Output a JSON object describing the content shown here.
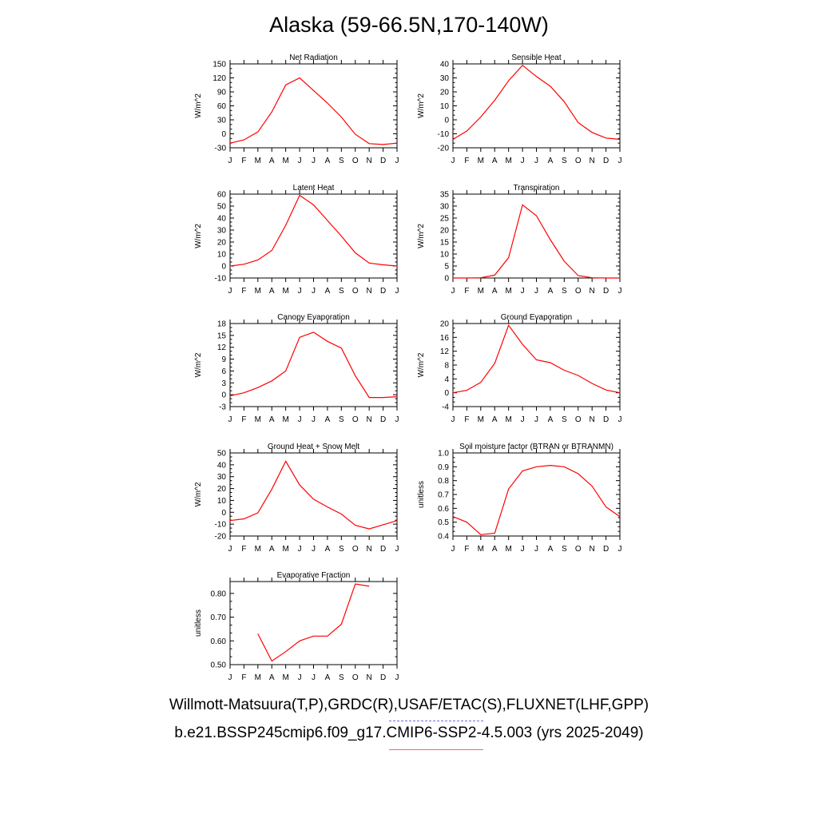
{
  "title": "Alaska (59-66.5N,170-140W)",
  "footer": {
    "line1": "Willmott-Matsuura(T,P),GRDC(R),USAF/ETAC(S),FLUXNET(LHF,GPP)",
    "line2": "b.e21.BSSP245cmip6.f09_g17.CMIP6-SSP2-4.5.003 (yrs 2025-2049)"
  },
  "colors": {
    "model": "#ff0000",
    "observations": "#5555ee"
  },
  "chart_data": [
    {
      "type": "line",
      "title": "Net Radiation",
      "ylabel": "W/m^2",
      "categories": [
        "J",
        "F",
        "M",
        "A",
        "M",
        "J",
        "J",
        "A",
        "S",
        "O",
        "N",
        "D",
        "J"
      ],
      "ylim": [
        -30,
        150
      ],
      "yticks": [
        "-30",
        "0",
        "30",
        "60",
        "90",
        "120",
        "150"
      ],
      "yticklabels": [
        "-30",
        "0",
        "30",
        "60",
        "90",
        "120",
        "150"
      ],
      "series": [
        {
          "values": [
            -20,
            -13,
            4,
            47,
            105,
            120,
            93,
            66,
            36,
            -1,
            -21,
            -23,
            -20
          ]
        }
      ]
    },
    {
      "type": "line",
      "title": "Sensible Heat",
      "ylabel": "W/m^2",
      "categories": [
        "J",
        "F",
        "M",
        "A",
        "M",
        "J",
        "J",
        "A",
        "S",
        "O",
        "N",
        "D",
        "J"
      ],
      "ylim": [
        -20,
        40
      ],
      "yticks": [
        -20,
        -10,
        0,
        10,
        20,
        30,
        40
      ],
      "yticklabels": [
        "-20",
        "-10",
        "0",
        "10",
        "20",
        "30",
        "40"
      ],
      "series": [
        {
          "values": [
            -14,
            -8,
            2,
            14,
            28,
            39,
            31,
            24,
            13,
            -2,
            -9,
            -13,
            -14
          ]
        }
      ]
    },
    {
      "type": "line",
      "title": "Latent Heat",
      "ylabel": "W/m^2",
      "categories": [
        "J",
        "F",
        "M",
        "A",
        "M",
        "J",
        "J",
        "A",
        "S",
        "O",
        "N",
        "D",
        "J"
      ],
      "ylim": [
        -10,
        60
      ],
      "yticks": [
        -10,
        0,
        10,
        20,
        30,
        40,
        50,
        60
      ],
      "yticklabels": [
        "-10",
        "0",
        "10",
        "20",
        "30",
        "40",
        "50",
        "60"
      ],
      "series": [
        {
          "values": [
            0,
            1.5,
            5,
            13,
            34,
            59,
            51,
            38,
            25,
            11,
            2.5,
            1,
            0
          ]
        }
      ]
    },
    {
      "type": "line",
      "title": "Transpiration",
      "ylabel": "W/m^2",
      "categories": [
        "J",
        "F",
        "M",
        "A",
        "M",
        "J",
        "J",
        "A",
        "S",
        "O",
        "N",
        "D",
        "J"
      ],
      "ylim": [
        0,
        35
      ],
      "yticks": [
        0,
        5,
        10,
        15,
        20,
        25,
        30,
        35
      ],
      "yticklabels": [
        "0",
        "5",
        "10",
        "15",
        "20",
        "25",
        "30",
        "35"
      ],
      "series": [
        {
          "values": [
            0,
            0,
            0.1,
            1.2,
            8.5,
            30.5,
            26,
            16,
            7,
            1,
            0.1,
            0,
            0
          ]
        }
      ]
    },
    {
      "type": "line",
      "title": "Canopy Evaporation",
      "ylabel": "W/m^2",
      "categories": [
        "J",
        "F",
        "M",
        "A",
        "M",
        "J",
        "J",
        "A",
        "S",
        "O",
        "N",
        "D",
        "J"
      ],
      "ylim": [
        -3,
        18
      ],
      "yticks": [
        -3,
        0,
        3,
        6,
        9,
        12,
        15,
        18
      ],
      "yticklabels": [
        "-3",
        "0",
        "3",
        "6",
        "9",
        "12",
        "15",
        "18"
      ],
      "series": [
        {
          "values": [
            -0.3,
            0.5,
            1.8,
            3.5,
            6,
            14.5,
            15.8,
            13.5,
            11.8,
            4.8,
            -0.7,
            -0.7,
            -0.5
          ]
        }
      ]
    },
    {
      "type": "line",
      "title": "Ground Evaporation",
      "ylabel": "W/m^2",
      "categories": [
        "J",
        "F",
        "M",
        "A",
        "M",
        "J",
        "J",
        "A",
        "S",
        "O",
        "N",
        "D",
        "J"
      ],
      "ylim": [
        -4,
        20
      ],
      "yticks": [
        -4,
        0,
        4,
        8,
        12,
        16,
        20
      ],
      "yticklabels": [
        "-4",
        "0",
        "4",
        "8",
        "12",
        "16",
        "20"
      ],
      "series": [
        {
          "values": [
            0,
            0.7,
            3,
            8.5,
            19.5,
            14,
            9.5,
            8.7,
            6.5,
            5,
            2.7,
            0.8,
            0
          ]
        }
      ]
    },
    {
      "type": "line",
      "title": "Ground Heat + Snow Melt",
      "ylabel": "W/m^2",
      "categories": [
        "J",
        "F",
        "M",
        "A",
        "M",
        "J",
        "J",
        "A",
        "S",
        "O",
        "N",
        "D",
        "J"
      ],
      "ylim": [
        -20,
        50
      ],
      "yticks": [
        -20,
        -10,
        0,
        10,
        20,
        30,
        40,
        50
      ],
      "yticklabels": [
        "-20",
        "-10",
        "0",
        "10",
        "20",
        "30",
        "40",
        "50"
      ],
      "series": [
        {
          "values": [
            -7,
            -5.5,
            -0.5,
            19.5,
            43,
            23,
            11,
            4.5,
            -1.5,
            -11,
            -14,
            -10.5,
            -7
          ]
        }
      ]
    },
    {
      "type": "line",
      "title": "Soil moisture factor (BTRAN or BTRANMN)",
      "ylabel": "unitless",
      "categories": [
        "J",
        "F",
        "M",
        "A",
        "M",
        "J",
        "J",
        "A",
        "S",
        "O",
        "N",
        "D",
        "J"
      ],
      "ylim": [
        0.4,
        1.0
      ],
      "yticks": [
        0.4,
        0.5,
        0.6,
        0.7,
        0.8,
        0.9,
        1.0
      ],
      "yticklabels": [
        "0.4",
        "0.5",
        "0.6",
        "0.7",
        "0.8",
        "0.9",
        "1.0"
      ],
      "series": [
        {
          "values": [
            0.54,
            0.5,
            0.41,
            0.42,
            0.74,
            0.87,
            0.9,
            0.91,
            0.9,
            0.85,
            0.76,
            0.61,
            0.54
          ]
        }
      ]
    },
    {
      "type": "line",
      "title": "Evaporative Fraction",
      "ylabel": "unitless",
      "categories": [
        "J",
        "F",
        "M",
        "A",
        "M",
        "J",
        "J",
        "A",
        "S",
        "O",
        "N",
        "D",
        "J"
      ],
      "ylim": [
        0.5,
        0.85
      ],
      "yticks": [
        0.5,
        0.6,
        0.7,
        0.8
      ],
      "yticklabels": [
        "0.50",
        "0.60",
        "0.70",
        "0.80"
      ],
      "series": [
        {
          "values": [
            null,
            null,
            0.63,
            0.515,
            0.555,
            0.6,
            0.62,
            0.62,
            0.67,
            0.84,
            0.83,
            null,
            null
          ]
        }
      ]
    }
  ]
}
